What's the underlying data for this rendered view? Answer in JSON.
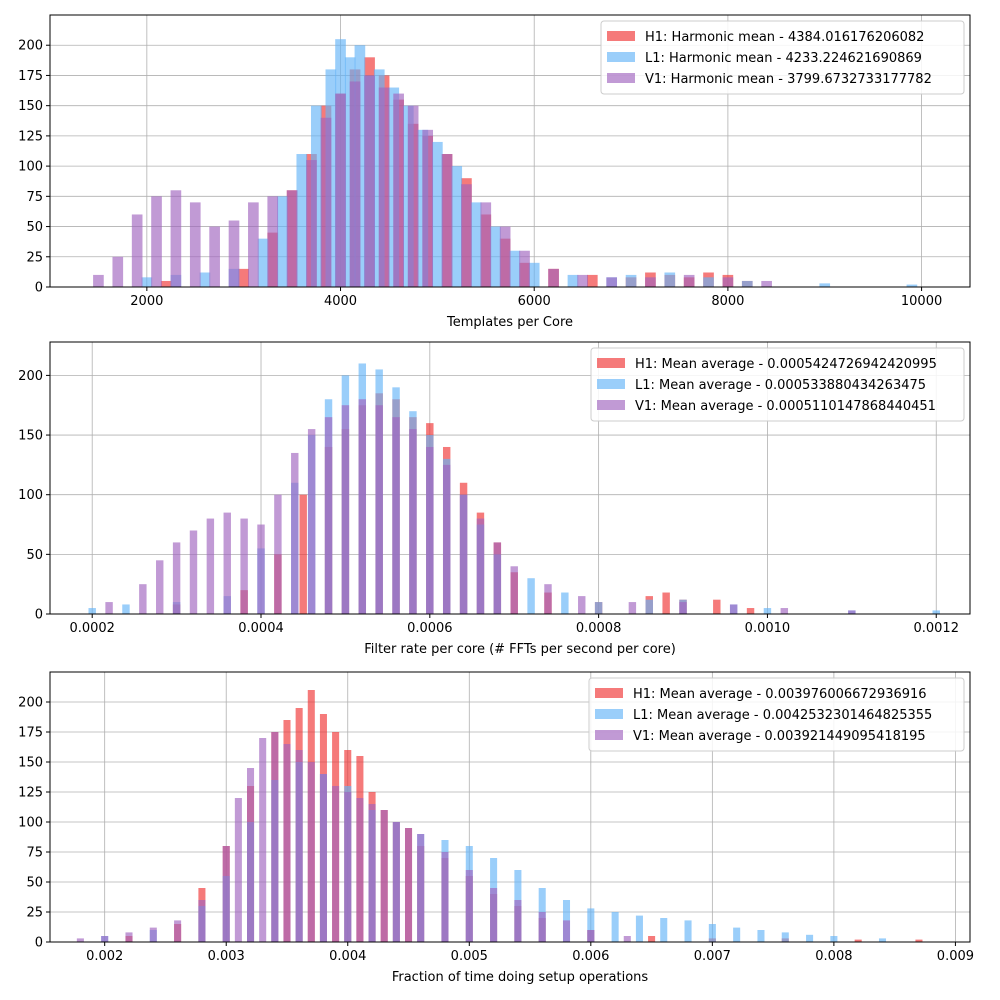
{
  "chart_data": [
    {
      "type": "bar",
      "xlabel": "Templates per Core",
      "ylabel": "",
      "xlim": [
        1000,
        10500
      ],
      "ylim": [
        0,
        225
      ],
      "xticks": [
        2000,
        4000,
        6000,
        8000,
        10000
      ],
      "yticks": [
        0,
        25,
        50,
        75,
        100,
        125,
        150,
        175,
        200
      ],
      "grid": true,
      "legend": "top-right",
      "bin_width": 110,
      "series": [
        {
          "name": "H1: Harmonic mean  - 4384.016176206082",
          "color": "#f03232",
          "x": [
            2200,
            3000,
            3300,
            3500,
            3700,
            3850,
            4000,
            4150,
            4300,
            4450,
            4600,
            4750,
            4900,
            5100,
            5300,
            5500,
            5700,
            5900,
            6200,
            6600,
            7000,
            7200,
            7400,
            7600,
            7800,
            8000,
            8200
          ],
          "values": [
            5,
            15,
            45,
            80,
            110,
            150,
            160,
            180,
            190,
            175,
            155,
            135,
            125,
            110,
            90,
            60,
            40,
            20,
            15,
            10,
            8,
            12,
            10,
            8,
            12,
            10,
            5
          ]
        },
        {
          "name": "L1: Harmonic mean  - 4233.224621690869",
          "color": "#64b4f8",
          "x": [
            2000,
            2300,
            2600,
            2900,
            3200,
            3400,
            3600,
            3750,
            3900,
            4000,
            4100,
            4200,
            4300,
            4400,
            4550,
            4700,
            4850,
            5000,
            5200,
            5400,
            5600,
            5800,
            6000,
            6400,
            6800,
            7000,
            7400,
            7800,
            8200,
            9000,
            9900
          ],
          "values": [
            8,
            10,
            12,
            15,
            40,
            75,
            110,
            150,
            180,
            205,
            190,
            200,
            175,
            180,
            165,
            150,
            130,
            120,
            100,
            70,
            50,
            30,
            20,
            10,
            8,
            10,
            12,
            8,
            5,
            3,
            2
          ]
        },
        {
          "name": "V1: Harmonic mean  - 3799.6732733177782",
          "color": "#a064be",
          "x": [
            1500,
            1700,
            1900,
            2100,
            2300,
            2500,
            2700,
            2900,
            3100,
            3300,
            3500,
            3700,
            3850,
            4000,
            4150,
            4300,
            4450,
            4600,
            4750,
            4900,
            5100,
            5300,
            5500,
            5700,
            5900,
            6200,
            6500,
            6800,
            7200,
            7600,
            8000,
            8400
          ],
          "values": [
            10,
            25,
            60,
            75,
            80,
            70,
            50,
            55,
            70,
            75,
            80,
            105,
            140,
            160,
            170,
            175,
            165,
            160,
            150,
            130,
            110,
            85,
            70,
            50,
            30,
            15,
            10,
            8,
            8,
            10,
            8,
            5
          ]
        }
      ]
    },
    {
      "type": "bar",
      "xlabel": "Filter rate per core (# FFTs per second per core)",
      "ylabel": "",
      "xlim": [
        0.00015,
        0.00124
      ],
      "ylim": [
        0,
        228
      ],
      "xticks": [
        0.0002,
        0.0004,
        0.0006,
        0.0008,
        0.001,
        0.0012
      ],
      "xtick_labels": [
        "0.0002",
        "0.0004",
        "0.0006",
        "0.0008",
        "0.0010",
        "0.0012"
      ],
      "yticks": [
        0,
        50,
        100,
        150,
        200
      ],
      "grid": true,
      "legend": "top-right",
      "bin_width": 8.8e-06,
      "series": [
        {
          "name": "H1: Mean average - 0.0005424726942420995",
          "color": "#f03232",
          "x": [
            0.0003,
            0.00038,
            0.00042,
            0.00045,
            0.00048,
            0.0005,
            0.00052,
            0.00054,
            0.00056,
            0.00058,
            0.0006,
            0.00062,
            0.00064,
            0.00066,
            0.00068,
            0.0007,
            0.00074,
            0.0008,
            0.00086,
            0.00088,
            0.0009,
            0.00094,
            0.00098
          ],
          "values": [
            8,
            20,
            50,
            100,
            140,
            155,
            175,
            185,
            180,
            165,
            160,
            140,
            110,
            85,
            60,
            35,
            18,
            10,
            15,
            18,
            12,
            12,
            5
          ]
        },
        {
          "name": "L1: Mean average - 0.000533880434263475",
          "color": "#64b4f8",
          "x": [
            0.0002,
            0.00024,
            0.0003,
            0.00036,
            0.0004,
            0.00044,
            0.00046,
            0.00048,
            0.0005,
            0.00052,
            0.00054,
            0.00056,
            0.00058,
            0.0006,
            0.00062,
            0.00064,
            0.00066,
            0.00068,
            0.00072,
            0.00076,
            0.0008,
            0.00086,
            0.0009,
            0.00096,
            0.001,
            0.0011,
            0.0012
          ],
          "values": [
            5,
            8,
            10,
            15,
            55,
            110,
            150,
            180,
            200,
            210,
            205,
            190,
            170,
            150,
            130,
            100,
            75,
            50,
            30,
            18,
            10,
            12,
            12,
            8,
            5,
            3,
            3
          ]
        },
        {
          "name": "V1: Mean average - 0.0005110147868440451",
          "color": "#a064be",
          "x": [
            0.00022,
            0.00026,
            0.00028,
            0.0003,
            0.00032,
            0.00034,
            0.00036,
            0.00038,
            0.0004,
            0.00042,
            0.00044,
            0.00046,
            0.00048,
            0.0005,
            0.00052,
            0.00054,
            0.00056,
            0.00058,
            0.0006,
            0.00062,
            0.00064,
            0.00066,
            0.00068,
            0.0007,
            0.00074,
            0.00078,
            0.00084,
            0.0009,
            0.00096,
            0.00102,
            0.0011
          ],
          "values": [
            10,
            25,
            45,
            60,
            70,
            80,
            85,
            80,
            75,
            100,
            135,
            155,
            165,
            175,
            180,
            175,
            165,
            155,
            140,
            125,
            100,
            80,
            60,
            40,
            25,
            15,
            10,
            10,
            8,
            5,
            3
          ]
        }
      ]
    },
    {
      "type": "bar",
      "xlabel": "Fraction of time doing setup operations",
      "ylabel": "",
      "xlim": [
        0.00155,
        0.00912
      ],
      "ylim": [
        0,
        225
      ],
      "xticks": [
        0.002,
        0.003,
        0.004,
        0.005,
        0.006,
        0.007,
        0.008,
        0.009
      ],
      "xtick_labels": [
        "0.002",
        "0.003",
        "0.004",
        "0.005",
        "0.006",
        "0.007",
        "0.008",
        "0.009"
      ],
      "yticks": [
        0,
        25,
        50,
        75,
        100,
        125,
        150,
        175,
        200
      ],
      "grid": true,
      "legend": "top-right",
      "bin_width": 5.8e-05,
      "series": [
        {
          "name": "H1: Mean average - 0.003976006672936916",
          "color": "#f03232",
          "x": [
            0.0022,
            0.0026,
            0.0028,
            0.003,
            0.0032,
            0.0034,
            0.0035,
            0.0036,
            0.0037,
            0.0038,
            0.0039,
            0.004,
            0.0041,
            0.0042,
            0.0043,
            0.0044,
            0.0045,
            0.0046,
            0.0048,
            0.005,
            0.0052,
            0.0054,
            0.0056,
            0.006,
            0.0065,
            0.007,
            0.0076,
            0.0082,
            0.0087
          ],
          "values": [
            5,
            15,
            45,
            80,
            130,
            175,
            185,
            195,
            210,
            190,
            175,
            160,
            155,
            125,
            110,
            100,
            95,
            80,
            70,
            55,
            40,
            30,
            20,
            10,
            5,
            3,
            3,
            2,
            2
          ]
        },
        {
          "name": "L1: Mean average - 0.0042532301464825355",
          "color": "#64b4f8",
          "x": [
            0.002,
            0.0024,
            0.0028,
            0.003,
            0.0032,
            0.0034,
            0.0036,
            0.0038,
            0.004,
            0.0042,
            0.0044,
            0.0046,
            0.0048,
            0.005,
            0.0052,
            0.0054,
            0.0056,
            0.0058,
            0.006,
            0.0062,
            0.0064,
            0.0066,
            0.0068,
            0.007,
            0.0072,
            0.0074,
            0.0076,
            0.0078,
            0.008,
            0.0084
          ],
          "values": [
            5,
            10,
            30,
            55,
            100,
            135,
            150,
            140,
            130,
            110,
            100,
            90,
            85,
            80,
            70,
            60,
            45,
            35,
            28,
            25,
            22,
            20,
            18,
            15,
            12,
            10,
            8,
            6,
            5,
            3
          ]
        },
        {
          "name": "V1: Mean average - 0.003921449095418195",
          "color": "#a064be",
          "x": [
            0.0018,
            0.002,
            0.0022,
            0.0024,
            0.0026,
            0.0028,
            0.003,
            0.0031,
            0.0032,
            0.0033,
            0.0034,
            0.0035,
            0.0036,
            0.0037,
            0.0038,
            0.0039,
            0.004,
            0.0041,
            0.0042,
            0.0043,
            0.0044,
            0.0045,
            0.0046,
            0.0048,
            0.005,
            0.0052,
            0.0054,
            0.0056,
            0.0058,
            0.006,
            0.0063
          ],
          "values": [
            3,
            5,
            8,
            12,
            18,
            35,
            80,
            120,
            145,
            170,
            175,
            165,
            160,
            150,
            140,
            130,
            125,
            120,
            115,
            110,
            100,
            95,
            90,
            75,
            60,
            45,
            35,
            25,
            18,
            10,
            5
          ]
        }
      ]
    }
  ]
}
